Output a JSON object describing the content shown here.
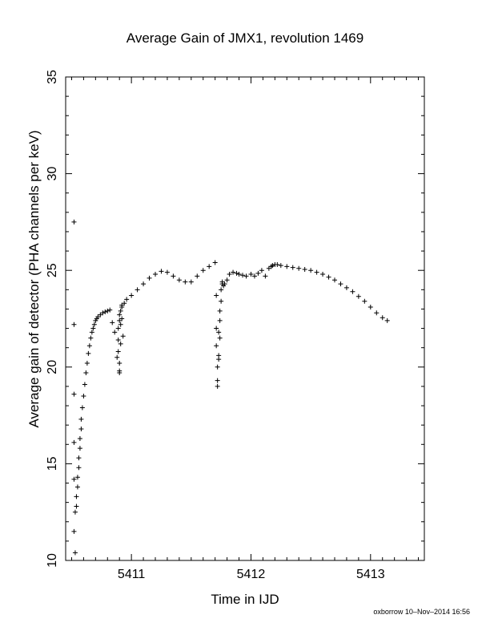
{
  "chart_data": {
    "type": "scatter",
    "title": "Average Gain of JMX1, revolution 1469",
    "xlabel": "Time in IJD",
    "ylabel": "Average gain of detector (PHA channels per keV)",
    "xlim": [
      5410.45,
      5413.45
    ],
    "ylim": [
      10,
      35
    ],
    "xticks": [
      5411,
      5412,
      5413
    ],
    "yticks": [
      10,
      15,
      20,
      25,
      30,
      35
    ],
    "marker": "plus",
    "grid": false,
    "color": "#000000",
    "series": [
      {
        "x": [
          5410.52,
          5410.52,
          5410.52,
          5410.52,
          5410.52,
          5410.52,
          5410.53,
          5410.53,
          5410.54,
          5410.54,
          5410.55,
          5410.55,
          5410.56,
          5410.56,
          5410.57,
          5410.57,
          5410.58,
          5410.58,
          5410.59,
          5410.6,
          5410.61,
          5410.62,
          5410.63,
          5410.64,
          5410.65,
          5410.66,
          5410.67,
          5410.68,
          5410.69,
          5410.7,
          5410.71,
          5410.72,
          5410.74,
          5410.76,
          5410.78,
          5410.8,
          5410.82,
          5410.84,
          5410.86,
          5410.88,
          5410.9,
          5410.89,
          5410.89,
          5410.89,
          5410.9,
          5410.9,
          5410.9,
          5410.9,
          5410.91,
          5410.91,
          5410.91,
          5410.92,
          5410.92,
          5410.92,
          5410.93,
          5410.94,
          5410.96,
          5411.0,
          5411.05,
          5411.1,
          5411.15,
          5411.2,
          5411.25,
          5411.3,
          5411.35,
          5411.4,
          5411.45,
          5411.5,
          5411.55,
          5411.6,
          5411.65,
          5411.7,
          5411.71,
          5411.71,
          5411.71,
          5411.72,
          5411.72,
          5411.72,
          5411.73,
          5411.73,
          5411.73,
          5411.74,
          5411.74,
          5411.74,
          5411.75,
          5411.75,
          5411.76,
          5411.76,
          5411.77,
          5411.78,
          5411.8,
          5411.82,
          5411.85,
          5411.88,
          5411.9,
          5411.93,
          5411.96,
          5412.0,
          5412.03,
          5412.06,
          5412.09,
          5412.12,
          5412.15,
          5412.17,
          5412.18,
          5412.2,
          5412.22,
          5412.25,
          5412.3,
          5412.35,
          5412.4,
          5412.45,
          5412.5,
          5412.55,
          5412.6,
          5412.65,
          5412.7,
          5412.75,
          5412.8,
          5412.85,
          5412.9,
          5412.95,
          5413.0,
          5413.05,
          5413.1,
          5413.14
        ],
        "y": [
          27.5,
          22.2,
          18.6,
          16.1,
          14.2,
          11.5,
          10.4,
          12.5,
          12.8,
          13.3,
          13.8,
          14.3,
          14.8,
          15.3,
          15.8,
          16.3,
          16.8,
          17.3,
          17.9,
          18.5,
          19.1,
          19.7,
          20.2,
          20.7,
          21.1,
          21.5,
          21.8,
          22.0,
          22.2,
          22.4,
          22.5,
          22.6,
          22.7,
          22.8,
          22.85,
          22.9,
          22.95,
          22.3,
          21.8,
          20.5,
          19.7,
          20.8,
          21.4,
          22.0,
          22.4,
          22.7,
          19.8,
          20.2,
          21.2,
          22.2,
          22.9,
          23.1,
          23.2,
          22.5,
          21.6,
          23.3,
          23.5,
          23.7,
          24.0,
          24.3,
          24.6,
          24.8,
          24.95,
          24.9,
          24.7,
          24.5,
          24.4,
          24.4,
          24.7,
          25.0,
          25.2,
          25.4,
          23.7,
          22.0,
          21.1,
          20.0,
          19.0,
          19.3,
          21.8,
          20.6,
          20.4,
          22.9,
          22.4,
          21.5,
          23.4,
          24.0,
          24.4,
          24.3,
          24.2,
          24.3,
          24.5,
          24.8,
          24.9,
          24.85,
          24.8,
          24.75,
          24.7,
          24.8,
          24.7,
          24.85,
          25.0,
          24.7,
          25.1,
          25.2,
          25.25,
          25.3,
          25.3,
          25.25,
          25.2,
          25.15,
          25.1,
          25.05,
          25.0,
          24.9,
          24.8,
          24.65,
          24.5,
          24.3,
          24.1,
          23.9,
          23.65,
          23.4,
          23.1,
          22.8,
          22.55,
          22.4
        ]
      }
    ]
  },
  "footer_text": "oxborrow 10–Nov–2014 16:56"
}
